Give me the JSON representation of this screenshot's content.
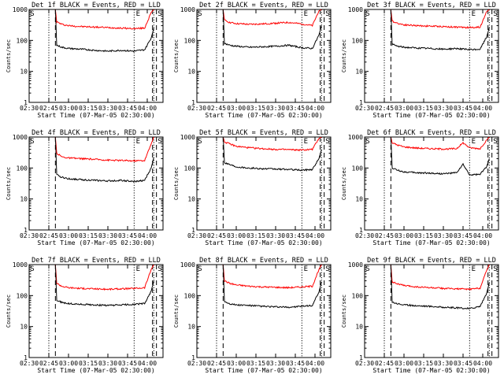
{
  "figure": {
    "start_time_label": "Start Time (07-Mar-05 02:30:00)",
    "ylabel": "Counts/sec",
    "series_colors": {
      "events": "#000000",
      "lld": "#ff0000"
    },
    "marker_labels": [
      "S",
      "E",
      "S"
    ]
  },
  "chart_data": [
    {
      "type": "line",
      "title": "Det 1f BLACK = Events, RED = LLD",
      "xlabel": "Start Time (07-Mar-05 02:30:00)",
      "ylabel": "Counts/sec",
      "y_scale": "log",
      "ylim": [
        1,
        1000
      ],
      "xlim": [
        "02:30",
        "04:12"
      ],
      "x_ticks": [
        "02:30",
        "02:45",
        "03:00",
        "03:15",
        "03:30",
        "03:45",
        "04:00"
      ],
      "y_ticks": [
        "1",
        "10",
        "100",
        "1000"
      ],
      "dotted_lines": [
        "02:45",
        "03:50",
        "04:05"
      ],
      "dashed_lines": [
        "02:50",
        "04:04",
        "04:07"
      ],
      "marker_labels": [
        "S",
        "E",
        "S"
      ],
      "series": [
        {
          "color": "#ff0000",
          "x": [
            "02:50",
            "02:51",
            "02:55",
            "03:00",
            "03:10",
            "03:20",
            "03:30",
            "03:40",
            "03:50",
            "03:58",
            "04:03",
            "04:05"
          ],
          "values": [
            1000,
            400,
            330,
            300,
            280,
            270,
            260,
            250,
            240,
            250,
            800,
            1000
          ]
        },
        {
          "color": "#000000",
          "x": [
            "02:50",
            "02:51",
            "02:55",
            "03:00",
            "03:10",
            "03:20",
            "03:30",
            "03:40",
            "03:50",
            "03:58",
            "04:03",
            "04:05"
          ],
          "values": [
            1000,
            70,
            60,
            55,
            52,
            48,
            45,
            48,
            45,
            50,
            120,
            250
          ]
        }
      ]
    },
    {
      "type": "line",
      "title": "Det 2f BLACK = Events, RED = LLD",
      "xlabel": "Start Time (07-Mar-05 02:30:00)",
      "ylabel": "Counts/sec",
      "y_scale": "log",
      "ylim": [
        1,
        1000
      ],
      "xlim": [
        "02:30",
        "04:12"
      ],
      "x_ticks": [
        "02:30",
        "02:45",
        "03:00",
        "03:15",
        "03:30",
        "03:45",
        "04:00"
      ],
      "y_ticks": [
        "1",
        "10",
        "100",
        "1000"
      ],
      "dotted_lines": [
        "02:45",
        "03:50",
        "04:05"
      ],
      "dashed_lines": [
        "02:50",
        "04:04",
        "04:07"
      ],
      "marker_labels": [
        "S",
        "E",
        "S"
      ],
      "series": [
        {
          "color": "#ff0000",
          "x": [
            "02:50",
            "02:51",
            "02:55",
            "03:00",
            "03:10",
            "03:20",
            "03:30",
            "03:40",
            "03:50",
            "03:58",
            "04:03",
            "04:05"
          ],
          "values": [
            1000,
            450,
            380,
            350,
            330,
            340,
            360,
            380,
            340,
            300,
            900,
            1000
          ]
        },
        {
          "color": "#000000",
          "x": [
            "02:50",
            "02:51",
            "02:55",
            "03:00",
            "03:10",
            "03:20",
            "03:30",
            "03:40",
            "03:50",
            "03:58",
            "04:03",
            "04:05"
          ],
          "values": [
            1000,
            80,
            70,
            65,
            60,
            62,
            65,
            70,
            58,
            55,
            150,
            300
          ]
        }
      ]
    },
    {
      "type": "line",
      "title": "Det 3f BLACK = Events, RED = LLD",
      "xlabel": "Start Time (07-Mar-05 02:30:00)",
      "ylabel": "Counts/sec",
      "y_scale": "log",
      "ylim": [
        1,
        1000
      ],
      "xlim": [
        "02:30",
        "04:12"
      ],
      "x_ticks": [
        "02:30",
        "02:45",
        "03:00",
        "03:15",
        "03:30",
        "03:45",
        "04:00"
      ],
      "y_ticks": [
        "1",
        "10",
        "100",
        "1000"
      ],
      "dotted_lines": [
        "02:45",
        "03:50",
        "04:05"
      ],
      "dashed_lines": [
        "02:50",
        "04:04",
        "04:07"
      ],
      "marker_labels": [
        "S",
        "E",
        "S"
      ],
      "series": [
        {
          "color": "#ff0000",
          "x": [
            "02:50",
            "02:51",
            "02:55",
            "03:00",
            "03:10",
            "03:20",
            "03:30",
            "03:40",
            "03:50",
            "03:58",
            "04:03",
            "04:05"
          ],
          "values": [
            1000,
            420,
            360,
            320,
            300,
            290,
            280,
            270,
            260,
            270,
            850,
            1000
          ]
        },
        {
          "color": "#000000",
          "x": [
            "02:50",
            "02:51",
            "02:55",
            "03:00",
            "03:10",
            "03:20",
            "03:30",
            "03:40",
            "03:50",
            "03:58",
            "04:03",
            "04:05"
          ],
          "values": [
            1000,
            75,
            65,
            60,
            57,
            55,
            52,
            55,
            50,
            52,
            130,
            260
          ]
        }
      ]
    },
    {
      "type": "line",
      "title": "Det 4f BLACK = Events, RED = LLD",
      "xlabel": "Start Time (07-Mar-05 02:30:00)",
      "ylabel": "Counts/sec",
      "y_scale": "log",
      "ylim": [
        1,
        1000
      ],
      "xlim": [
        "02:30",
        "04:12"
      ],
      "x_ticks": [
        "02:30",
        "02:45",
        "03:00",
        "03:15",
        "03:30",
        "03:45",
        "04:00"
      ],
      "y_ticks": [
        "1",
        "10",
        "100",
        "1000"
      ],
      "dotted_lines": [
        "02:45",
        "03:50",
        "04:05"
      ],
      "dashed_lines": [
        "02:50",
        "04:04",
        "04:07"
      ],
      "marker_labels": [
        "S",
        "E",
        "S"
      ],
      "series": [
        {
          "color": "#ff0000",
          "x": [
            "02:50",
            "02:51",
            "02:55",
            "03:00",
            "03:10",
            "03:20",
            "03:30",
            "03:40",
            "03:50",
            "03:58",
            "04:03",
            "04:05"
          ],
          "values": [
            1000,
            300,
            230,
            210,
            200,
            190,
            180,
            175,
            170,
            175,
            600,
            1000
          ]
        },
        {
          "color": "#000000",
          "x": [
            "02:50",
            "02:51",
            "02:55",
            "03:00",
            "03:10",
            "03:20",
            "03:30",
            "03:40",
            "03:50",
            "03:58",
            "04:03",
            "04:05"
          ],
          "values": [
            1000,
            60,
            50,
            45,
            42,
            40,
            38,
            40,
            36,
            40,
            100,
            220
          ]
        }
      ]
    },
    {
      "type": "line",
      "title": "Det 5f BLACK = Events, RED = LLD",
      "xlabel": "Start Time (07-Mar-05 02:30:00)",
      "ylabel": "Counts/sec",
      "y_scale": "log",
      "ylim": [
        1,
        1000
      ],
      "xlim": [
        "02:30",
        "04:12"
      ],
      "x_ticks": [
        "02:30",
        "02:45",
        "03:00",
        "03:15",
        "03:30",
        "03:45",
        "04:00"
      ],
      "y_ticks": [
        "1",
        "10",
        "100",
        "1000"
      ],
      "dotted_lines": [
        "02:45",
        "03:50",
        "04:05"
      ],
      "dashed_lines": [
        "02:50",
        "04:04",
        "04:07"
      ],
      "marker_labels": [
        "S",
        "E",
        "S"
      ],
      "series": [
        {
          "color": "#ff0000",
          "x": [
            "02:50",
            "02:51",
            "02:55",
            "03:00",
            "03:10",
            "03:20",
            "03:30",
            "03:40",
            "03:50",
            "03:58",
            "04:03",
            "04:05"
          ],
          "values": [
            1000,
            700,
            600,
            500,
            450,
            420,
            400,
            390,
            380,
            400,
            900,
            1000
          ]
        },
        {
          "color": "#000000",
          "x": [
            "02:50",
            "02:51",
            "02:55",
            "03:00",
            "03:10",
            "03:20",
            "03:30",
            "03:40",
            "03:50",
            "03:58",
            "04:03",
            "04:05"
          ],
          "values": [
            1000,
            150,
            130,
            110,
            100,
            95,
            92,
            90,
            85,
            90,
            200,
            400
          ]
        }
      ]
    },
    {
      "type": "line",
      "title": "Det 6f BLACK = Events, RED = LLD",
      "xlabel": "Start Time (07-Mar-05 02:30:00)",
      "ylabel": "Counts/sec",
      "y_scale": "log",
      "ylim": [
        1,
        1000
      ],
      "xlim": [
        "02:30",
        "04:12"
      ],
      "x_ticks": [
        "02:30",
        "02:45",
        "03:00",
        "03:15",
        "03:30",
        "03:45",
        "04:00"
      ],
      "y_ticks": [
        "1",
        "10",
        "100",
        "1000"
      ],
      "dotted_lines": [
        "02:45",
        "03:50",
        "04:05"
      ],
      "dashed_lines": [
        "02:50",
        "04:04",
        "04:07"
      ],
      "marker_labels": [
        "S",
        "E",
        "S"
      ],
      "series": [
        {
          "color": "#ff0000",
          "x": [
            "02:50",
            "02:51",
            "02:55",
            "03:00",
            "03:10",
            "03:20",
            "03:30",
            "03:40",
            "03:45",
            "03:50",
            "03:58",
            "04:03",
            "04:05"
          ],
          "values": [
            1000,
            650,
            550,
            480,
            440,
            420,
            410,
            420,
            650,
            450,
            420,
            800,
            1000
          ]
        },
        {
          "color": "#000000",
          "x": [
            "02:50",
            "02:51",
            "02:55",
            "03:00",
            "03:10",
            "03:20",
            "03:30",
            "03:40",
            "03:45",
            "03:50",
            "03:58",
            "04:03",
            "04:05"
          ],
          "values": [
            1000,
            100,
            85,
            75,
            70,
            68,
            65,
            70,
            130,
            60,
            62,
            110,
            200
          ]
        }
      ]
    },
    {
      "type": "line",
      "title": "Det 7f BLACK = Events, RED = LLD",
      "xlabel": "Start Time (07-Mar-05 02:30:00)",
      "ylabel": "Counts/sec",
      "y_scale": "log",
      "ylim": [
        1,
        1000
      ],
      "xlim": [
        "02:30",
        "04:12"
      ],
      "x_ticks": [
        "02:30",
        "02:45",
        "03:00",
        "03:15",
        "03:30",
        "03:45",
        "04:00"
      ],
      "y_ticks": [
        "1",
        "10",
        "100",
        "1000"
      ],
      "dotted_lines": [
        "02:45",
        "03:50",
        "04:05"
      ],
      "dashed_lines": [
        "02:50",
        "04:04",
        "04:07"
      ],
      "marker_labels": [
        "S",
        "E",
        "S"
      ],
      "series": [
        {
          "color": "#ff0000",
          "x": [
            "02:50",
            "02:51",
            "02:55",
            "03:00",
            "03:10",
            "03:20",
            "03:30",
            "03:40",
            "03:50",
            "03:58",
            "04:03",
            "04:05"
          ],
          "values": [
            1000,
            250,
            200,
            180,
            170,
            165,
            160,
            165,
            170,
            180,
            700,
            1000
          ]
        },
        {
          "color": "#000000",
          "x": [
            "02:50",
            "02:51",
            "02:55",
            "03:00",
            "03:10",
            "03:20",
            "03:30",
            "03:40",
            "03:50",
            "03:58",
            "04:03",
            "04:05"
          ],
          "values": [
            1000,
            70,
            60,
            55,
            52,
            50,
            48,
            50,
            52,
            55,
            140,
            300
          ]
        }
      ]
    },
    {
      "type": "line",
      "title": "Det 8f BLACK = Events, RED = LLD",
      "xlabel": "Start Time (07-Mar-05 02:30:00)",
      "ylabel": "Counts/sec",
      "y_scale": "log",
      "ylim": [
        1,
        1000
      ],
      "xlim": [
        "02:30",
        "04:12"
      ],
      "x_ticks": [
        "02:30",
        "02:45",
        "03:00",
        "03:15",
        "03:30",
        "03:45",
        "04:00"
      ],
      "y_ticks": [
        "1",
        "10",
        "100",
        "1000"
      ],
      "dotted_lines": [
        "02:45",
        "03:50",
        "04:05"
      ],
      "dashed_lines": [
        "02:50",
        "04:04",
        "04:07"
      ],
      "marker_labels": [
        "S",
        "E",
        "S"
      ],
      "series": [
        {
          "color": "#ff0000",
          "x": [
            "02:50",
            "02:51",
            "02:55",
            "03:00",
            "03:10",
            "03:20",
            "03:30",
            "03:40",
            "03:50",
            "03:58",
            "04:03",
            "04:05"
          ],
          "values": [
            1000,
            300,
            250,
            220,
            200,
            190,
            185,
            180,
            190,
            200,
            700,
            1000
          ]
        },
        {
          "color": "#000000",
          "x": [
            "02:50",
            "02:51",
            "02:55",
            "03:00",
            "03:10",
            "03:20",
            "03:30",
            "03:40",
            "03:50",
            "03:58",
            "04:03",
            "04:05"
          ],
          "values": [
            1000,
            65,
            55,
            50,
            48,
            45,
            43,
            42,
            45,
            48,
            130,
            280
          ]
        }
      ]
    },
    {
      "type": "line",
      "title": "Det 9f BLACK = Events, RED = LLD",
      "xlabel": "Start Time (07-Mar-05 02:30:00)",
      "ylabel": "Counts/sec",
      "y_scale": "log",
      "ylim": [
        1,
        1000
      ],
      "xlim": [
        "02:30",
        "04:12"
      ],
      "x_ticks": [
        "02:30",
        "02:45",
        "03:00",
        "03:15",
        "03:30",
        "03:45",
        "04:00"
      ],
      "y_ticks": [
        "1",
        "10",
        "100",
        "1000"
      ],
      "dotted_lines": [
        "02:45",
        "03:50",
        "04:05"
      ],
      "dashed_lines": [
        "02:50",
        "04:04",
        "04:07"
      ],
      "marker_labels": [
        "S",
        "E",
        "S"
      ],
      "series": [
        {
          "color": "#ff0000",
          "x": [
            "02:50",
            "02:51",
            "02:55",
            "03:00",
            "03:10",
            "03:20",
            "03:30",
            "03:40",
            "03:50",
            "03:58",
            "04:03",
            "04:05"
          ],
          "values": [
            1000,
            280,
            240,
            210,
            190,
            180,
            170,
            165,
            160,
            175,
            650,
            1000
          ]
        },
        {
          "color": "#000000",
          "x": [
            "02:50",
            "02:51",
            "02:55",
            "03:00",
            "03:10",
            "03:20",
            "03:30",
            "03:40",
            "03:50",
            "03:58",
            "04:03",
            "04:05"
          ],
          "values": [
            1000,
            62,
            55,
            50,
            47,
            45,
            42,
            40,
            38,
            45,
            120,
            260
          ]
        }
      ]
    }
  ]
}
